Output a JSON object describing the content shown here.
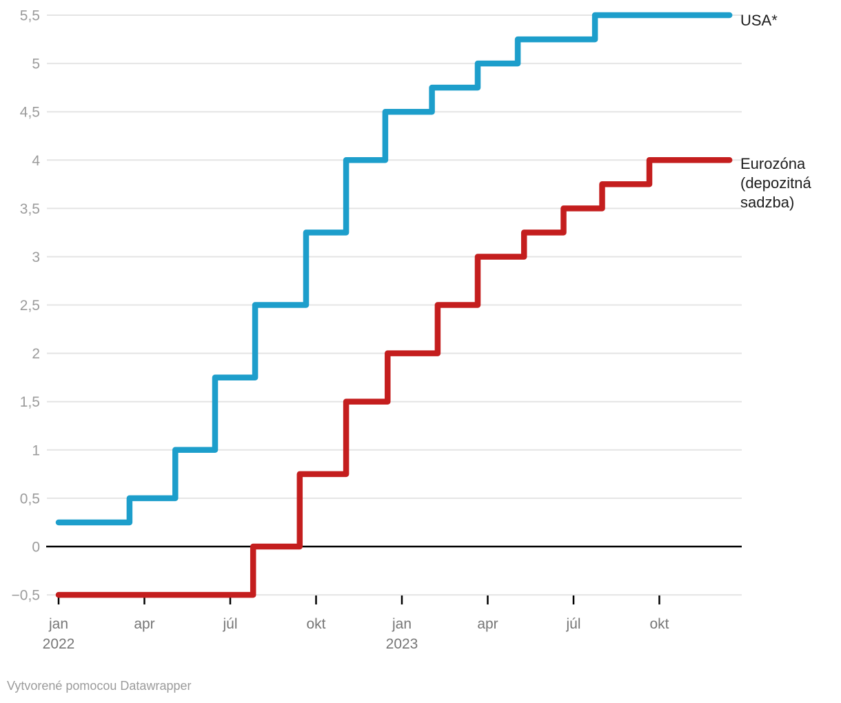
{
  "chart_data": {
    "type": "line",
    "subtype": "step-after",
    "title": "",
    "x_axis": {
      "unit": "months since jan 2022",
      "range_months": [
        0,
        23.9
      ],
      "ticks": [
        {
          "m": 0,
          "label": "jan",
          "year": "2022"
        },
        {
          "m": 3,
          "label": "apr"
        },
        {
          "m": 6,
          "label": "júl"
        },
        {
          "m": 9,
          "label": "okt"
        },
        {
          "m": 12,
          "label": "jan",
          "year": "2023"
        },
        {
          "m": 15,
          "label": "apr"
        },
        {
          "m": 18,
          "label": "júl"
        },
        {
          "m": 21,
          "label": "okt"
        }
      ]
    },
    "y_axis": {
      "range": [
        -0.5,
        5.5
      ],
      "ticks": [
        {
          "v": -0.5,
          "label": "−0,5"
        },
        {
          "v": 0,
          "label": "0"
        },
        {
          "v": 0.5,
          "label": "0,5"
        },
        {
          "v": 1,
          "label": "1"
        },
        {
          "v": 1.5,
          "label": "1,5"
        },
        {
          "v": 2,
          "label": "2"
        },
        {
          "v": 2.5,
          "label": "2,5"
        },
        {
          "v": 3,
          "label": "3"
        },
        {
          "v": 3.5,
          "label": "3,5"
        },
        {
          "v": 4,
          "label": "4"
        },
        {
          "v": 4.5,
          "label": "4,5"
        },
        {
          "v": 5,
          "label": "5"
        },
        {
          "v": 5.5,
          "label": "5,5"
        }
      ]
    },
    "series": [
      {
        "name": "USA*",
        "label": "USA*",
        "color": "#1d9ecb",
        "points": [
          [
            0,
            0.25
          ],
          [
            2.48,
            0.5
          ],
          [
            4.08,
            1.0
          ],
          [
            5.47,
            1.75
          ],
          [
            6.87,
            2.5
          ],
          [
            8.65,
            3.25
          ],
          [
            10.05,
            4.0
          ],
          [
            11.42,
            4.5
          ],
          [
            13.05,
            4.75
          ],
          [
            14.65,
            5.0
          ],
          [
            16.05,
            5.25
          ],
          [
            18.75,
            5.5
          ],
          [
            23.45,
            5.5
          ]
        ]
      },
      {
        "name": "Eurozóna (depozitná sadzba)",
        "label_lines": [
          "Eurozóna",
          "(depozitná",
          "sadzba)"
        ],
        "color": "#c41e1e",
        "points": [
          [
            0,
            -0.5
          ],
          [
            6.8,
            0.0
          ],
          [
            8.43,
            0.75
          ],
          [
            10.05,
            1.5
          ],
          [
            11.5,
            2.0
          ],
          [
            13.25,
            2.5
          ],
          [
            14.65,
            3.0
          ],
          [
            16.27,
            3.25
          ],
          [
            17.65,
            3.5
          ],
          [
            19.0,
            3.75
          ],
          [
            20.65,
            4.0
          ],
          [
            23.45,
            4.0
          ]
        ]
      }
    ],
    "grid": "horizontal",
    "zero_line": true,
    "legend_position": "right-of-line-end"
  },
  "footer": {
    "credit": "Vytvorené pomocou Datawrapper"
  },
  "colors": {
    "usa_line": "#1d9ecb",
    "eurozona_line": "#c41e1e",
    "gridline": "#e4e4e4",
    "zero_line": "#000000",
    "tick_mark": "#000000",
    "y_label": "#9b9b9b",
    "x_label": "#767676",
    "series_label": "#1d1d1d",
    "credit": "#9b9b9b"
  }
}
